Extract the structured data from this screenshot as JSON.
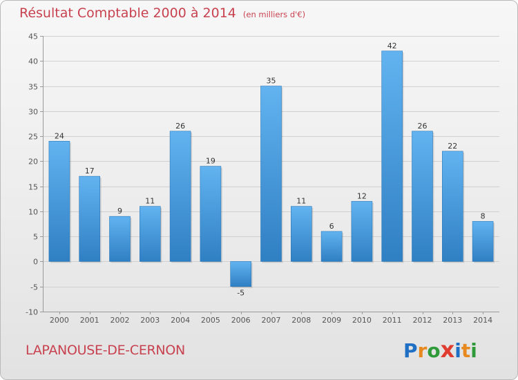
{
  "chart_data": {
    "type": "bar",
    "title": "Résultat Comptable 2000 à 2014",
    "subtitle": "(en milliers d'€)",
    "xlabel": "",
    "ylabel": "",
    "categories": [
      "2000",
      "2001",
      "2002",
      "2003",
      "2004",
      "2005",
      "2006",
      "2007",
      "2008",
      "2009",
      "2010",
      "2011",
      "2012",
      "2013",
      "2014"
    ],
    "values": [
      24,
      17,
      9,
      11,
      26,
      19,
      -5,
      35,
      11,
      6,
      12,
      42,
      26,
      22,
      8
    ],
    "ylim": [
      -10,
      45
    ],
    "yticks": [
      -10,
      -5,
      0,
      5,
      10,
      15,
      20,
      25,
      30,
      35,
      40,
      45
    ],
    "grid": true,
    "data_labels": true,
    "bar_color": "#4a9fe0",
    "bar_color_dark": "#2f7fc3"
  },
  "footer": {
    "commune": "LAPANOUSE-DE-CERNON",
    "logo_letters": [
      "P",
      "r",
      "o",
      "x",
      "i",
      "t",
      "i"
    ],
    "logo_colors": [
      "#1f6fc5",
      "#e8891f",
      "#2f9a39",
      "#e03c2f",
      "#1f6fc5",
      "#e8891f",
      "#2f9a39"
    ]
  }
}
